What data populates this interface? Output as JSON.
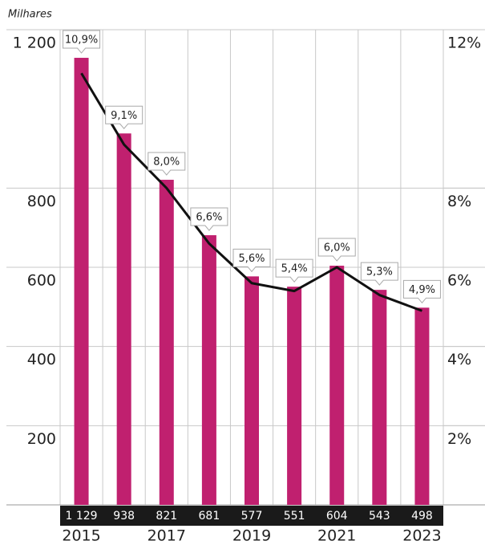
{
  "chart_data": {
    "type": "bar_line",
    "y_unit_label": "Milhares",
    "categories": [
      "2015",
      null,
      "2017",
      null,
      "2019",
      null,
      "2021",
      null,
      "2023"
    ],
    "series": [
      {
        "type": "bar",
        "color": "#c0206f",
        "values": [
          1129,
          938,
          821,
          681,
          577,
          551,
          604,
          543,
          498
        ],
        "value_labels": [
          "1 129",
          "938",
          "821",
          "681",
          "577",
          "551",
          "604",
          "543",
          "498"
        ]
      },
      {
        "type": "line",
        "axis": "y2",
        "color": "#111111",
        "values": [
          10.9,
          9.1,
          8.0,
          6.6,
          5.6,
          5.4,
          6.0,
          5.3,
          4.9
        ],
        "value_labels": [
          "10,9%",
          "9,1%",
          "8,0%",
          "6,6%",
          "5,6%",
          "5,4%",
          "6,0%",
          "5,3%",
          "4,9%"
        ]
      }
    ],
    "ylim": [
      0,
      1200
    ],
    "yticks": [
      {
        "value": 1200,
        "label": "1 200"
      },
      800,
      600,
      400,
      200
    ],
    "y2lim": [
      0,
      12
    ],
    "y2ticks": [
      {
        "value": 12,
        "label": "12%"
      },
      {
        "value": 8,
        "label": "8%"
      },
      {
        "value": 6,
        "label": "6%"
      },
      {
        "value": 4,
        "label": "4%"
      },
      {
        "value": 2,
        "label": "2%"
      }
    ],
    "grid": true
  }
}
